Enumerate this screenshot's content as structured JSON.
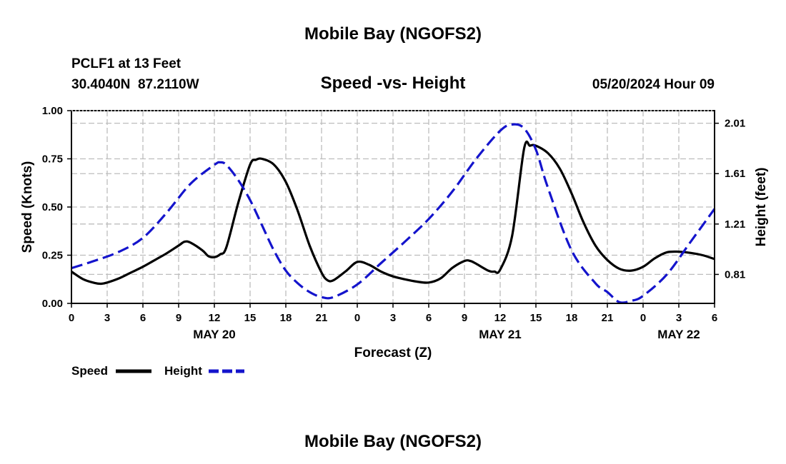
{
  "header": {
    "title": "Mobile Bay (NGOFS2)",
    "station": "PCLF1 at 13 Feet",
    "coords": "30.4040N  87.2110W",
    "subtitle": "Speed -vs- Height",
    "datetime": "05/20/2024 Hour 09"
  },
  "footer": {
    "title": "Mobile Bay (NGOFS2)"
  },
  "chart_data": {
    "type": "line",
    "xlabel": "Forecast (Z)",
    "ylabel_left": "Speed (Knots)",
    "ylabel_right": "Height (feet)",
    "x_range_hours": [
      0,
      54
    ],
    "x_ticks": [
      {
        "h": 0,
        "label": "0"
      },
      {
        "h": 3,
        "label": "3"
      },
      {
        "h": 6,
        "label": "6"
      },
      {
        "h": 9,
        "label": "9"
      },
      {
        "h": 12,
        "label": "12"
      },
      {
        "h": 15,
        "label": "15"
      },
      {
        "h": 18,
        "label": "18"
      },
      {
        "h": 21,
        "label": "21"
      },
      {
        "h": 24,
        "label": "0"
      },
      {
        "h": 27,
        "label": "3"
      },
      {
        "h": 30,
        "label": "6"
      },
      {
        "h": 33,
        "label": "9"
      },
      {
        "h": 36,
        "label": "12"
      },
      {
        "h": 39,
        "label": "15"
      },
      {
        "h": 42,
        "label": "18"
      },
      {
        "h": 45,
        "label": "21"
      },
      {
        "h": 48,
        "label": "0"
      },
      {
        "h": 51,
        "label": "3"
      },
      {
        "h": 54,
        "label": "6"
      }
    ],
    "day_labels": [
      {
        "h": 12,
        "label": "MAY 20"
      },
      {
        "h": 36,
        "label": "MAY 21"
      },
      {
        "h": 51,
        "label": "MAY 22"
      }
    ],
    "y_left": {
      "min": 0,
      "max": 1.0,
      "ticks": [
        "0.00",
        "0.25",
        "0.50",
        "0.75",
        "1.00"
      ],
      "tick_values": [
        0,
        0.25,
        0.5,
        0.75,
        1.0
      ]
    },
    "y_right": {
      "min": 0.58,
      "max": 2.11,
      "ticks": [
        "0.81",
        "1.21",
        "1.61",
        "2.01"
      ],
      "tick_values": [
        0.81,
        1.21,
        1.61,
        2.01
      ]
    },
    "series": [
      {
        "name": "Speed",
        "axis": "left",
        "color": "#000000",
        "style": "solid",
        "x": [
          0,
          1,
          2,
          2.5,
          3,
          4,
          5,
          6,
          7,
          8,
          9,
          9.5,
          10,
          11,
          11.5,
          12,
          12.5,
          13,
          14,
          15,
          15.5,
          16,
          17,
          18,
          19,
          20,
          21,
          21.5,
          22,
          23,
          24,
          25,
          26,
          27,
          28,
          29,
          30,
          31,
          32,
          33,
          33.5,
          34,
          35,
          35.5,
          36,
          37,
          38,
          38.5,
          39,
          40,
          41,
          42,
          43,
          44,
          45,
          46,
          47,
          48,
          49,
          50,
          51,
          52,
          53,
          54
        ],
        "y": [
          0.165,
          0.125,
          0.105,
          0.102,
          0.108,
          0.13,
          0.16,
          0.19,
          0.225,
          0.26,
          0.3,
          0.32,
          0.315,
          0.275,
          0.245,
          0.24,
          0.255,
          0.29,
          0.52,
          0.72,
          0.745,
          0.75,
          0.72,
          0.63,
          0.48,
          0.3,
          0.16,
          0.12,
          0.12,
          0.165,
          0.215,
          0.2,
          0.165,
          0.14,
          0.125,
          0.113,
          0.108,
          0.13,
          0.185,
          0.22,
          0.22,
          0.205,
          0.17,
          0.165,
          0.175,
          0.35,
          0.8,
          0.818,
          0.818,
          0.78,
          0.7,
          0.57,
          0.42,
          0.3,
          0.225,
          0.18,
          0.17,
          0.19,
          0.235,
          0.265,
          0.268,
          0.262,
          0.25,
          0.23
        ]
      },
      {
        "name": "Height",
        "axis": "right",
        "color": "#1414cc",
        "style": "dashed",
        "x": [
          0,
          2,
          4,
          6,
          8,
          10,
          12,
          12.5,
          13,
          14,
          15,
          16,
          17,
          18,
          19,
          20,
          21,
          22,
          24,
          26,
          28,
          30,
          32,
          34,
          36,
          37,
          38,
          39,
          40,
          42,
          44,
          45,
          46,
          47,
          48,
          50,
          52,
          54
        ],
        "y": [
          0.86,
          0.92,
          0.99,
          1.1,
          1.3,
          1.53,
          1.68,
          1.7,
          1.68,
          1.56,
          1.4,
          1.2,
          1.0,
          0.84,
          0.74,
          0.67,
          0.63,
          0.63,
          0.73,
          0.9,
          1.07,
          1.25,
          1.47,
          1.73,
          1.95,
          2.0,
          1.97,
          1.8,
          1.5,
          1.0,
          0.74,
          0.67,
          0.59,
          0.6,
          0.64,
          0.81,
          1.07,
          1.33
        ]
      }
    ],
    "legend": [
      {
        "label": "Speed",
        "color": "#000000",
        "style": "solid"
      },
      {
        "label": "Height",
        "color": "#1414cc",
        "style": "dashed"
      }
    ]
  }
}
